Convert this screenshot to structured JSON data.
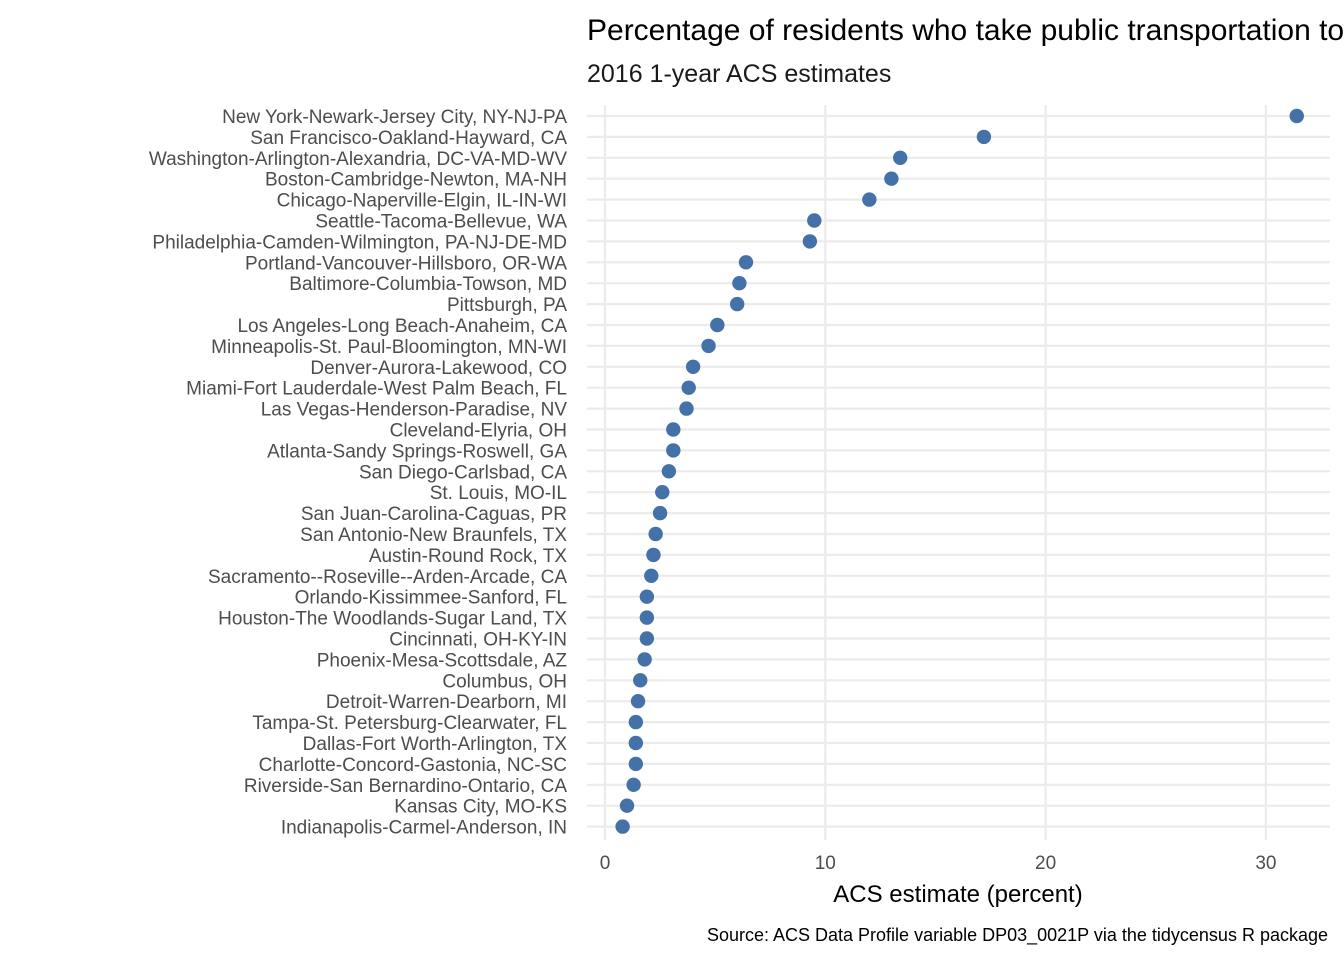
{
  "chart_data": {
    "type": "scatter",
    "title": "Percentage of residents who take public transportation to work",
    "subtitle": "2016 1-year ACS estimates",
    "xlabel": "ACS estimate (percent)",
    "ylabel": "",
    "caption": "Source: ACS Data Profile variable DP03_0021P via the tidycensus R package",
    "xlim": [
      -0.9,
      32.8
    ],
    "xticks": [
      0,
      10,
      20,
      30
    ],
    "grid": true,
    "point_color": "#4472a8",
    "categories": [
      "New York-Newark-Jersey City, NY-NJ-PA",
      "San Francisco-Oakland-Hayward, CA",
      "Washington-Arlington-Alexandria, DC-VA-MD-WV",
      "Boston-Cambridge-Newton, MA-NH",
      "Chicago-Naperville-Elgin, IL-IN-WI",
      "Seattle-Tacoma-Bellevue, WA",
      "Philadelphia-Camden-Wilmington, PA-NJ-DE-MD",
      "Portland-Vancouver-Hillsboro, OR-WA",
      "Baltimore-Columbia-Towson, MD",
      "Pittsburgh, PA",
      "Los Angeles-Long Beach-Anaheim, CA",
      "Minneapolis-St. Paul-Bloomington, MN-WI",
      "Denver-Aurora-Lakewood, CO",
      "Miami-Fort Lauderdale-West Palm Beach, FL",
      "Las Vegas-Henderson-Paradise, NV",
      "Cleveland-Elyria, OH",
      "Atlanta-Sandy Springs-Roswell, GA",
      "San Diego-Carlsbad, CA",
      "St. Louis, MO-IL",
      "San Juan-Carolina-Caguas, PR",
      "San Antonio-New Braunfels, TX",
      "Austin-Round Rock, TX",
      "Sacramento--Roseville--Arden-Arcade, CA",
      "Orlando-Kissimmee-Sanford, FL",
      "Houston-The Woodlands-Sugar Land, TX",
      "Cincinnati, OH-KY-IN",
      "Phoenix-Mesa-Scottsdale, AZ",
      "Columbus, OH",
      "Detroit-Warren-Dearborn, MI",
      "Tampa-St. Petersburg-Clearwater, FL",
      "Dallas-Fort Worth-Arlington, TX",
      "Charlotte-Concord-Gastonia, NC-SC",
      "Riverside-San Bernardino-Ontario, CA",
      "Kansas City, MO-KS",
      "Indianapolis-Carmel-Anderson, IN"
    ],
    "values": [
      31.4,
      17.2,
      13.4,
      13.0,
      12.0,
      9.5,
      9.3,
      6.4,
      6.1,
      6.0,
      5.1,
      4.7,
      4.0,
      3.8,
      3.7,
      3.1,
      3.1,
      2.9,
      2.6,
      2.5,
      2.3,
      2.2,
      2.1,
      1.9,
      1.9,
      1.9,
      1.8,
      1.6,
      1.5,
      1.4,
      1.4,
      1.4,
      1.3,
      1.0,
      0.8
    ]
  }
}
